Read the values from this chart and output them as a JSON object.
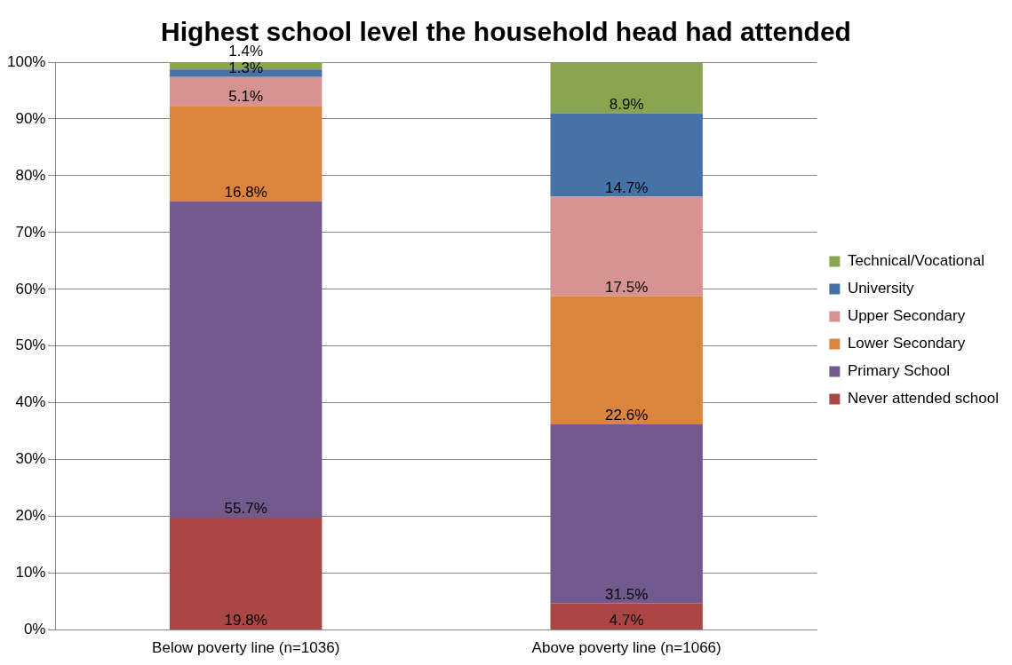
{
  "chart_data": {
    "type": "bar",
    "title": "Highest school level the household head had attended",
    "categories": [
      "Below poverty line (n=1036)",
      "Above poverty line (n=1066)"
    ],
    "stacked": true,
    "series": [
      {
        "name": "Never attended school",
        "color": "#aa4643",
        "values": [
          19.8,
          4.7
        ],
        "value_labels": [
          "19.8%",
          "4.7%"
        ]
      },
      {
        "name": "Primary School",
        "color": "#725a8f",
        "values": [
          55.7,
          31.5
        ],
        "value_labels": [
          "55.7%",
          "31.5%"
        ]
      },
      {
        "name": "Lower Secondary",
        "color": "#db843d",
        "values": [
          16.8,
          22.6
        ],
        "value_labels": [
          "16.8%",
          "22.6%"
        ]
      },
      {
        "name": "Upper Secondary",
        "color": "#d69392",
        "values": [
          5.1,
          17.5
        ],
        "value_labels": [
          "5.1%",
          "17.5%"
        ]
      },
      {
        "name": "University",
        "color": "#4572a7",
        "values": [
          1.3,
          14.7
        ],
        "value_labels": [
          "1.3%",
          "14.7%"
        ]
      },
      {
        "name": "Technical/Vocational",
        "color": "#89a54e",
        "values": [
          1.4,
          8.9
        ],
        "value_labels": [
          "1.4%",
          "8.9%"
        ]
      }
    ],
    "ylim": [
      0,
      100
    ],
    "yticks": [
      {
        "value": 0,
        "label": "0%"
      },
      {
        "value": 10,
        "label": "10%"
      },
      {
        "value": 20,
        "label": "20%"
      },
      {
        "value": 30,
        "label": "30%"
      },
      {
        "value": 40,
        "label": "40%"
      },
      {
        "value": 50,
        "label": "50%"
      },
      {
        "value": 60,
        "label": "60%"
      },
      {
        "value": 70,
        "label": "70%"
      },
      {
        "value": 80,
        "label": "80%"
      },
      {
        "value": 90,
        "label": "90%"
      },
      {
        "value": 100,
        "label": "100%"
      }
    ],
    "grid": "y",
    "legend": "right"
  }
}
